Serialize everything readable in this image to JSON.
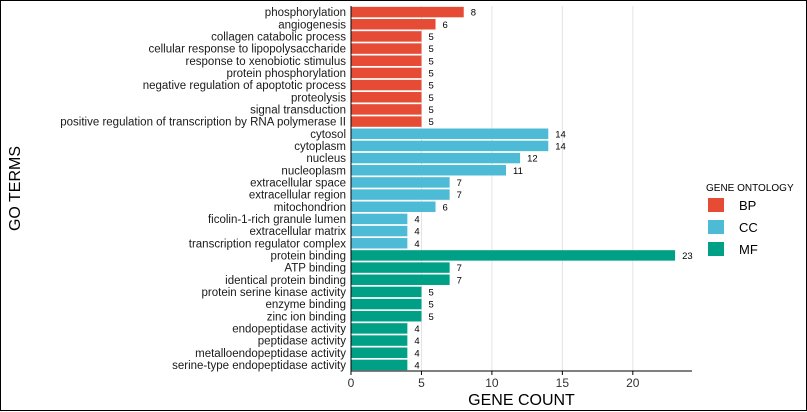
{
  "chart_data": {
    "type": "bar",
    "orientation": "horizontal",
    "xlabel": "GENE COUNT",
    "ylabel": "GO TERMS",
    "xlim": [
      0,
      24.2
    ],
    "x_ticks": [
      0,
      5,
      10,
      15,
      20
    ],
    "grid": "vertical major",
    "legend": {
      "title": "GENE ONTOLOGY",
      "placement": "right",
      "entries": [
        {
          "key": "BP",
          "label": "BP",
          "color": "#E64B35"
        },
        {
          "key": "CC",
          "label": "CC",
          "color": "#4DBBD5"
        },
        {
          "key": "MF",
          "label": "MF",
          "color": "#00A087"
        }
      ]
    },
    "categories": [
      "phosphorylation",
      "angiogenesis",
      "collagen catabolic process",
      "cellular response to lipopolysaccharide",
      "response to xenobiotic stimulus",
      "protein phosphorylation",
      "negative regulation of apoptotic process",
      "proteolysis",
      "signal transduction",
      "positive regulation of transcription by RNA polymerase II",
      "cytosol",
      "cytoplasm",
      "nucleus",
      "nucleoplasm",
      "extracellular space",
      "extracellular region",
      "mitochondrion",
      "ficolin-1-rich granule lumen",
      "extracellular matrix",
      "transcription regulator complex",
      "protein binding",
      "ATP binding",
      "identical protein binding",
      "protein serine kinase activity",
      "enzyme binding",
      "zinc ion binding",
      "endopeptidase activity",
      "peptidase activity",
      "metalloendopeptidase activity",
      "serine-type endopeptidase activity"
    ],
    "values": [
      8,
      6,
      5,
      5,
      5,
      5,
      5,
      5,
      5,
      5,
      14,
      14,
      12,
      11,
      7,
      7,
      6,
      4,
      4,
      4,
      23,
      7,
      7,
      5,
      5,
      5,
      4,
      4,
      4,
      4
    ],
    "groups": [
      "BP",
      "BP",
      "BP",
      "BP",
      "BP",
      "BP",
      "BP",
      "BP",
      "BP",
      "BP",
      "CC",
      "CC",
      "CC",
      "CC",
      "CC",
      "CC",
      "CC",
      "CC",
      "CC",
      "CC",
      "MF",
      "MF",
      "MF",
      "MF",
      "MF",
      "MF",
      "MF",
      "MF",
      "MF",
      "MF"
    ]
  }
}
